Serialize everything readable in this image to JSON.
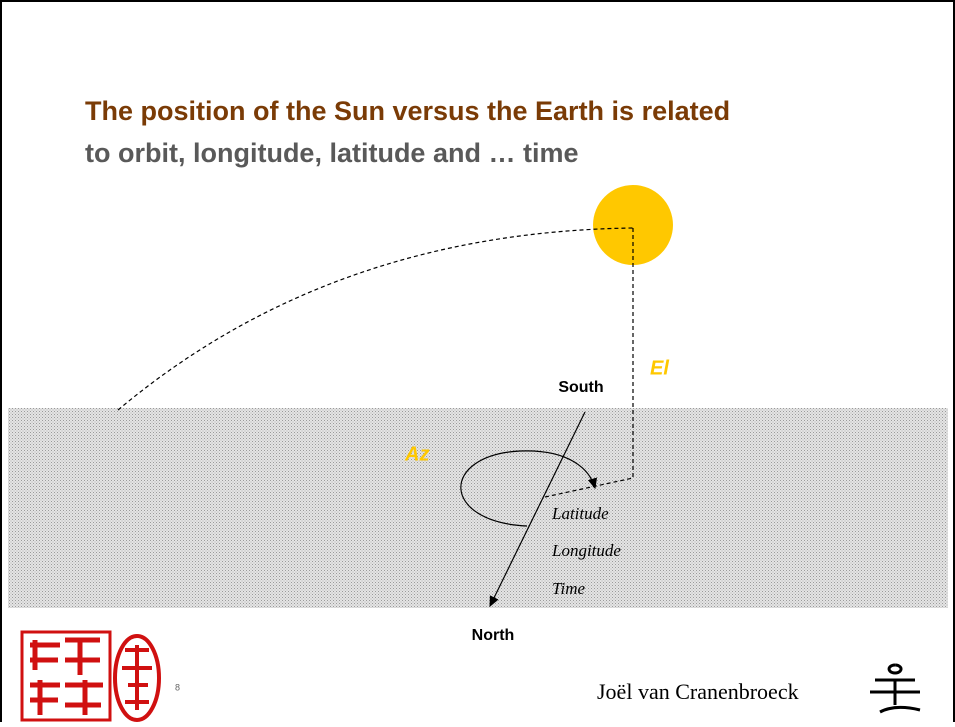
{
  "header": {
    "title_line1": "The position of the Sun versus the Earth is related",
    "title_line2": "to orbit, longitude, latitude and … time"
  },
  "diagram": {
    "south": "South",
    "north": "North",
    "elevation": "El",
    "azimuth": "Az",
    "parameters": [
      "Latitude",
      "Longitude",
      "Time"
    ]
  },
  "footer": {
    "page": "8",
    "author": "Joël van Cranenbroeck"
  }
}
